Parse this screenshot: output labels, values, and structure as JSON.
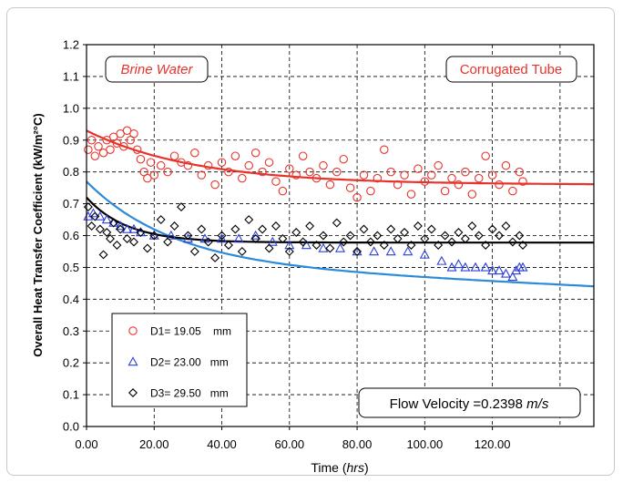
{
  "chart_data": {
    "type": "scatter",
    "xlabel": "Time",
    "xlabel_unit": "hrs",
    "ylabel": "Overall Heat Transfer Coefficient (kW/m²°C)",
    "xlim": [
      0,
      150
    ],
    "ylim": [
      0,
      1.2
    ],
    "x_ticks": [
      "0.00",
      "20.00",
      "40.00",
      "60.00",
      "80.00",
      "100.00",
      "120.00"
    ],
    "y_ticks": [
      "0.0",
      "0.1",
      "0.2",
      "0.3",
      "0.4",
      "0.5",
      "0.6",
      "0.7",
      "0.8",
      "0.9",
      "1.0",
      "1.1",
      "1.2"
    ],
    "grid": true,
    "annotations": {
      "left": "Brine Water",
      "right": "Corrugated Tube",
      "flow_prefix": "Flow Velocity =0.2398 ",
      "flow_unit": "m/s"
    },
    "legend_placement": "bottom-left",
    "series": [
      {
        "name": "D1= 19.05    mm",
        "marker": "circle",
        "color": "#e8332a",
        "points": [
          [
            0.5,
            0.87
          ],
          [
            1.5,
            0.9
          ],
          [
            2.5,
            0.85
          ],
          [
            3.5,
            0.88
          ],
          [
            5,
            0.86
          ],
          [
            6,
            0.9
          ],
          [
            7,
            0.87
          ],
          [
            8,
            0.91
          ],
          [
            9,
            0.89
          ],
          [
            10,
            0.92
          ],
          [
            11,
            0.88
          ],
          [
            12,
            0.93
          ],
          [
            13,
            0.9
          ],
          [
            14,
            0.92
          ],
          [
            15,
            0.87
          ],
          [
            16,
            0.84
          ],
          [
            17,
            0.8
          ],
          [
            18,
            0.78
          ],
          [
            19,
            0.83
          ],
          [
            20,
            0.79
          ],
          [
            22,
            0.82
          ],
          [
            24,
            0.8
          ],
          [
            26,
            0.85
          ],
          [
            28,
            0.83
          ],
          [
            30,
            0.82
          ],
          [
            32,
            0.86
          ],
          [
            34,
            0.79
          ],
          [
            36,
            0.82
          ],
          [
            38,
            0.76
          ],
          [
            40,
            0.83
          ],
          [
            42,
            0.8
          ],
          [
            44,
            0.85
          ],
          [
            46,
            0.78
          ],
          [
            48,
            0.82
          ],
          [
            50,
            0.86
          ],
          [
            52,
            0.8
          ],
          [
            54,
            0.83
          ],
          [
            56,
            0.77
          ],
          [
            58,
            0.74
          ],
          [
            60,
            0.81
          ],
          [
            62,
            0.79
          ],
          [
            64,
            0.85
          ],
          [
            66,
            0.8
          ],
          [
            68,
            0.78
          ],
          [
            70,
            0.82
          ],
          [
            72,
            0.76
          ],
          [
            74,
            0.8
          ],
          [
            76,
            0.84
          ],
          [
            78,
            0.75
          ],
          [
            80,
            0.72
          ],
          [
            82,
            0.79
          ],
          [
            84,
            0.74
          ],
          [
            86,
            0.78
          ],
          [
            88,
            0.87
          ],
          [
            90,
            0.8
          ],
          [
            92,
            0.76
          ],
          [
            94,
            0.79
          ],
          [
            96,
            0.73
          ],
          [
            98,
            0.81
          ],
          [
            100,
            0.77
          ],
          [
            102,
            0.79
          ],
          [
            104,
            0.82
          ],
          [
            106,
            0.74
          ],
          [
            108,
            0.78
          ],
          [
            110,
            0.76
          ],
          [
            112,
            0.8
          ],
          [
            114,
            0.73
          ],
          [
            116,
            0.78
          ],
          [
            118,
            0.85
          ],
          [
            120,
            0.79
          ],
          [
            122,
            0.76
          ],
          [
            124,
            0.82
          ],
          [
            126,
            0.74
          ],
          [
            128,
            0.8
          ],
          [
            129,
            0.77
          ]
        ]
      },
      {
        "name": "D2= 23.00   mm",
        "marker": "triangle",
        "color": "#2b3fd9",
        "points": [
          [
            0.5,
            0.66
          ],
          [
            2,
            0.67
          ],
          [
            4,
            0.66
          ],
          [
            6,
            0.65
          ],
          [
            8,
            0.64
          ],
          [
            10,
            0.63
          ],
          [
            12,
            0.62
          ],
          [
            14,
            0.62
          ],
          [
            16,
            0.61
          ],
          [
            20,
            0.6
          ],
          [
            25,
            0.6
          ],
          [
            30,
            0.59
          ],
          [
            35,
            0.59
          ],
          [
            40,
            0.59
          ],
          [
            45,
            0.59
          ],
          [
            50,
            0.6
          ],
          [
            55,
            0.58
          ],
          [
            60,
            0.57
          ],
          [
            65,
            0.57
          ],
          [
            70,
            0.56
          ],
          [
            75,
            0.56
          ],
          [
            80,
            0.55
          ],
          [
            85,
            0.55
          ],
          [
            90,
            0.55
          ],
          [
            95,
            0.55
          ],
          [
            100,
            0.54
          ],
          [
            105,
            0.52
          ],
          [
            108,
            0.5
          ],
          [
            110,
            0.51
          ],
          [
            112,
            0.5
          ],
          [
            115,
            0.5
          ],
          [
            118,
            0.5
          ],
          [
            120,
            0.49
          ],
          [
            122,
            0.49
          ],
          [
            124,
            0.48
          ],
          [
            126,
            0.47
          ],
          [
            127,
            0.49
          ],
          [
            128,
            0.5
          ],
          [
            129,
            0.5
          ]
        ]
      },
      {
        "name": "D3= 29.50   mm",
        "marker": "diamond",
        "color": "#000000",
        "points": [
          [
            0.5,
            0.69
          ],
          [
            1.5,
            0.63
          ],
          [
            2.5,
            0.66
          ],
          [
            4,
            0.62
          ],
          [
            5,
            0.54
          ],
          [
            6,
            0.61
          ],
          [
            7,
            0.59
          ],
          [
            8,
            0.64
          ],
          [
            9,
            0.57
          ],
          [
            10,
            0.62
          ],
          [
            12,
            0.59
          ],
          [
            14,
            0.58
          ],
          [
            16,
            0.61
          ],
          [
            18,
            0.56
          ],
          [
            20,
            0.6
          ],
          [
            22,
            0.65
          ],
          [
            24,
            0.58
          ],
          [
            26,
            0.63
          ],
          [
            28,
            0.69
          ],
          [
            30,
            0.6
          ],
          [
            32,
            0.55
          ],
          [
            34,
            0.62
          ],
          [
            36,
            0.58
          ],
          [
            38,
            0.53
          ],
          [
            40,
            0.6
          ],
          [
            42,
            0.57
          ],
          [
            44,
            0.62
          ],
          [
            46,
            0.55
          ],
          [
            48,
            0.65
          ],
          [
            50,
            0.59
          ],
          [
            52,
            0.62
          ],
          [
            54,
            0.56
          ],
          [
            56,
            0.63
          ],
          [
            58,
            0.59
          ],
          [
            60,
            0.55
          ],
          [
            62,
            0.61
          ],
          [
            64,
            0.58
          ],
          [
            66,
            0.63
          ],
          [
            68,
            0.57
          ],
          [
            70,
            0.6
          ],
          [
            72,
            0.56
          ],
          [
            74,
            0.64
          ],
          [
            76,
            0.58
          ],
          [
            78,
            0.6
          ],
          [
            80,
            0.55
          ],
          [
            82,
            0.62
          ],
          [
            84,
            0.58
          ],
          [
            86,
            0.6
          ],
          [
            88,
            0.57
          ],
          [
            90,
            0.62
          ],
          [
            92,
            0.59
          ],
          [
            94,
            0.61
          ],
          [
            96,
            0.57
          ],
          [
            98,
            0.63
          ],
          [
            100,
            0.59
          ],
          [
            102,
            0.62
          ],
          [
            104,
            0.57
          ],
          [
            106,
            0.6
          ],
          [
            108,
            0.58
          ],
          [
            110,
            0.61
          ],
          [
            112,
            0.59
          ],
          [
            114,
            0.63
          ],
          [
            116,
            0.6
          ],
          [
            118,
            0.57
          ],
          [
            120,
            0.62
          ],
          [
            122,
            0.6
          ],
          [
            124,
            0.63
          ],
          [
            126,
            0.58
          ],
          [
            128,
            0.6
          ],
          [
            129,
            0.57
          ]
        ]
      }
    ],
    "trendlines": [
      {
        "series": "D1= 19.05    mm",
        "color": "#e8332a",
        "a": 0.93,
        "b": 0.76,
        "tau": 32
      },
      {
        "series": "D2= 23.00   mm",
        "color": "#2b8ad9",
        "a": 0.77,
        "b": 0.515,
        "tau": 25,
        "c": 0.0005
      },
      {
        "series": "D3= 29.50   mm",
        "color": "#000000",
        "a": 0.72,
        "b": 0.578,
        "tau": 12
      }
    ]
  }
}
